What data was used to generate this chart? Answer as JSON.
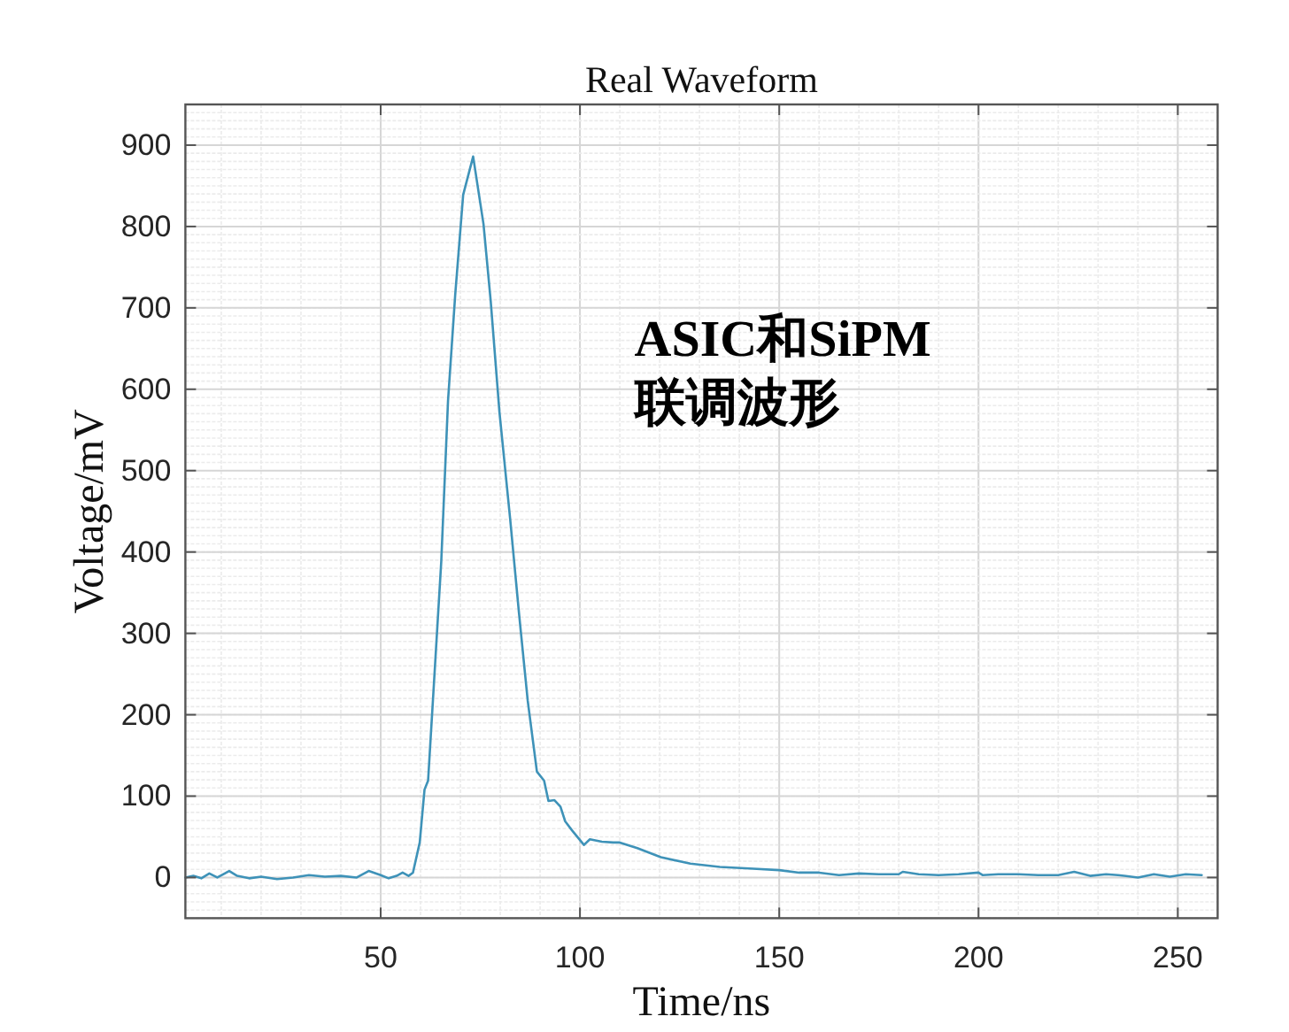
{
  "chart_data": {
    "type": "line",
    "title": "Real Waveform",
    "xlabel": "Time/ns",
    "ylabel": "Voltage/mV",
    "annotations": [
      "ASIC和SiPM 联调波形"
    ],
    "xlim": [
      1,
      260
    ],
    "ylim": [
      -50,
      950
    ],
    "xticks": [
      50,
      100,
      150,
      200,
      250
    ],
    "yticks": [
      0,
      100,
      200,
      300,
      400,
      500,
      600,
      700,
      800,
      900
    ],
    "grid": true,
    "series": [
      {
        "color": "#3e92b8",
        "x": [
          1,
          3,
          5,
          7,
          9,
          12,
          14,
          17,
          20,
          24,
          28,
          32,
          36,
          40,
          44,
          47,
          50,
          52,
          54,
          55.5,
          57,
          58.1,
          59.8,
          61,
          61.9,
          65.2,
          66.9,
          68.7,
          70.7,
          73.2,
          75.8,
          77.6,
          79.8,
          82.5,
          84.7,
          86.9,
          89.2,
          91,
          92.1,
          93.6,
          95.1,
          96.3,
          98,
          101,
          102.5,
          105.5,
          108.4,
          110,
          114.4,
          120.3,
          127.7,
          135.1,
          142.5,
          150,
          155,
          160,
          165,
          170,
          175,
          180,
          181,
          185,
          190,
          195,
          200,
          201,
          205,
          210,
          215,
          220,
          224,
          228,
          232,
          235,
          240,
          244,
          248,
          252,
          256
        ],
        "values": [
          0,
          2,
          -1,
          5,
          0,
          8,
          2,
          -1,
          1,
          -2,
          0,
          3,
          1,
          2,
          0,
          8,
          3,
          -1,
          2,
          6,
          2,
          6,
          43,
          108,
          119,
          388,
          586,
          716,
          839,
          886,
          803,
          709,
          572,
          440,
          325,
          217,
          130,
          119,
          94,
          95,
          87,
          69,
          58,
          40,
          47,
          44,
          43,
          43,
          36,
          25,
          17,
          13,
          11,
          9,
          6,
          6,
          3,
          5,
          4,
          4,
          7,
          4,
          3,
          4,
          6,
          3,
          4,
          4,
          3,
          3,
          7,
          2,
          4,
          3,
          0,
          4,
          1,
          4,
          3
        ]
      }
    ]
  }
}
